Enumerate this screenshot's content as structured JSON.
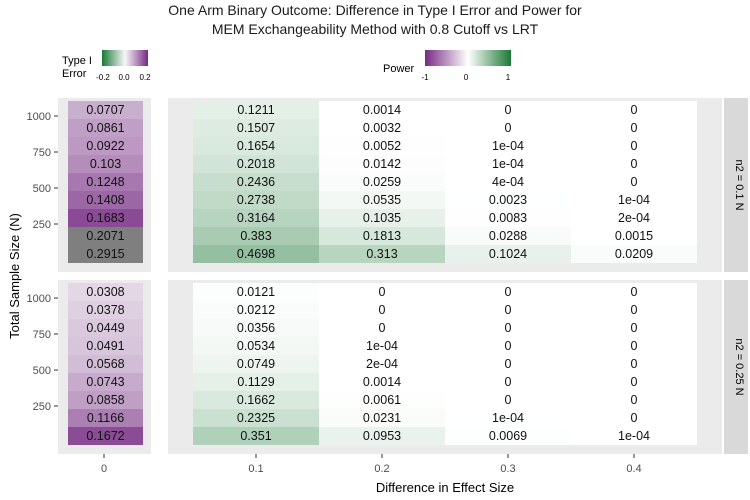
{
  "chart_data": {
    "type": "heatmap",
    "title_line1": "One Arm Binary Outcome: Difference in Type I Error and Power for",
    "title_line2": "MEM Exchangeability Method with 0.8 Cutoff vs LRT",
    "xlabel": "Difference in Effect Size",
    "ylabel": "Total Sample Size (N)",
    "typeI_x_tick": "0",
    "power_x_ticks": [
      "0.1",
      "0.2",
      "0.3",
      "0.4"
    ],
    "y_ticks": [
      "1000",
      "750",
      "500",
      "250"
    ],
    "facets": [
      "n2 = 0.1 N",
      "n2 = 0.25 N"
    ],
    "legend_typeI": {
      "title_line1": "Type I",
      "title_line2": "Error",
      "ticks": [
        "-0.2",
        "0.0",
        "0.2"
      ],
      "colors": {
        "low": "#1b7837",
        "mid": "#f7f7f7",
        "high": "#762a83"
      },
      "range": [
        -0.2,
        0.2
      ],
      "na_color": "#7f7f7f"
    },
    "legend_power": {
      "title": "Power",
      "ticks": [
        "-1",
        "0",
        "1"
      ],
      "colors": {
        "low": "#762a83",
        "mid": "#ffffff",
        "high": "#1b7837"
      },
      "range": [
        -1,
        1
      ]
    },
    "panels": [
      {
        "facet": "n2 = 0.1 N",
        "typeI": [
          "0.0707",
          "0.0861",
          "0.0922",
          "0.103",
          "0.1248",
          "0.1408",
          "0.1683",
          "0.2071",
          "0.2915"
        ],
        "power": [
          [
            "0.1211",
            "0.0014",
            "0",
            "0"
          ],
          [
            "0.1507",
            "0.0032",
            "0",
            "0"
          ],
          [
            "0.1654",
            "0.0052",
            "1e-04",
            "0"
          ],
          [
            "0.2018",
            "0.0142",
            "1e-04",
            "0"
          ],
          [
            "0.2436",
            "0.0259",
            "4e-04",
            "0"
          ],
          [
            "0.2738",
            "0.0535",
            "0.0023",
            "1e-04"
          ],
          [
            "0.3164",
            "0.1035",
            "0.0083",
            "2e-04"
          ],
          [
            "0.383",
            "0.1813",
            "0.0288",
            "0.0015"
          ],
          [
            "0.4698",
            "0.313",
            "0.1024",
            "0.0209"
          ]
        ]
      },
      {
        "facet": "n2 = 0.25 N",
        "typeI": [
          "0.0308",
          "0.0378",
          "0.0449",
          "0.0491",
          "0.0568",
          "0.0743",
          "0.0858",
          "0.1166",
          "0.1672"
        ],
        "power": [
          [
            "0.0121",
            "0",
            "0",
            "0"
          ],
          [
            "0.0212",
            "0",
            "0",
            "0"
          ],
          [
            "0.0356",
            "0",
            "0",
            "0"
          ],
          [
            "0.0534",
            "1e-04",
            "0",
            "0"
          ],
          [
            "0.0749",
            "2e-04",
            "0",
            "0"
          ],
          [
            "0.1129",
            "0.0014",
            "0",
            "0"
          ],
          [
            "0.1662",
            "0.0061",
            "0",
            "0"
          ],
          [
            "0.2325",
            "0.0231",
            "1e-04",
            "0"
          ],
          [
            "0.351",
            "0.0953",
            "0.0069",
            "1e-04"
          ]
        ]
      }
    ]
  }
}
